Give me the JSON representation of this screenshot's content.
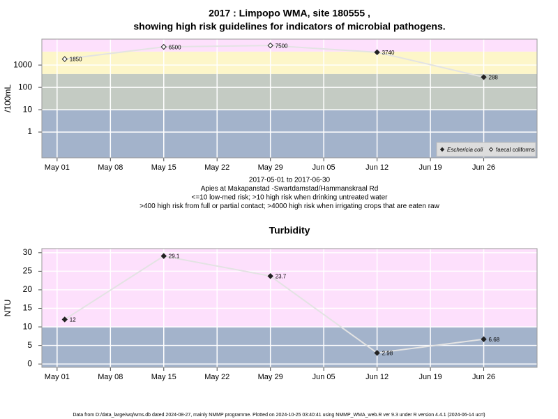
{
  "chart_data": [
    {
      "type": "line",
      "title": [
        "2017 : Limpopo WMA, site 180555 ,",
        "showing high risk guidelines for indicators of microbial pathogens."
      ],
      "notes": [
        "2017-05-01 to 2017-06-30",
        "Apies at Makapanstad -Swartdamstad/Hammanskraal Rd",
        "<=10 low-med risk; >10 high risk when drinking untreated water",
        ">400 high risk from full or partial contact; >4000 high risk when irrigating crops that are eaten raw"
      ],
      "ylabel": "/100mL",
      "log_scale": true,
      "grid": true,
      "legend": "bottom-right",
      "x": [
        "2017-05-02",
        "2017-05-15",
        "2017-05-29",
        "2017-06-12",
        "2017-06-26"
      ],
      "xlim": [
        "2017-04-29",
        "2017-07-03"
      ],
      "xticks": [
        {
          "value": "2017-05-01",
          "label": "May 01"
        },
        {
          "value": "2017-05-08",
          "label": "May 08"
        },
        {
          "value": "2017-05-15",
          "label": "May 15"
        },
        {
          "value": "2017-05-22",
          "label": "May 22"
        },
        {
          "value": "2017-05-29",
          "label": "May 29"
        },
        {
          "value": "2017-06-05",
          "label": "Jun 05"
        },
        {
          "value": "2017-06-12",
          "label": "Jun 12"
        },
        {
          "value": "2017-06-19",
          "label": "Jun 19"
        },
        {
          "value": "2017-06-26",
          "label": "Jun 26"
        }
      ],
      "ylim": [
        0.07,
        14500
      ],
      "yticks": [
        1,
        10,
        100,
        1000
      ],
      "bands": [
        {
          "to": 10,
          "color": "#a3b3cb"
        },
        {
          "to": 400,
          "color": "#c4cbc3"
        },
        {
          "to": 4000,
          "color": "#fdf6c9"
        },
        {
          "to": 14500,
          "color": "#fde0fc"
        }
      ],
      "line_color": "#e3e3e3",
      "series": [
        {
          "name": "Eschericia coli",
          "marker": "filled",
          "color": "#222222",
          "values": [
            null,
            null,
            null,
            3740,
            288
          ]
        },
        {
          "name": "faecal coliforms",
          "marker": "open",
          "color": "#222222",
          "values": [
            1850,
            6500,
            7500,
            null,
            null
          ]
        }
      ]
    },
    {
      "type": "line",
      "title": "Turbidity",
      "ylabel": "NTU",
      "log_scale": false,
      "grid": true,
      "x": [
        "2017-05-02",
        "2017-05-15",
        "2017-05-29",
        "2017-06-12",
        "2017-06-26"
      ],
      "xlim": [
        "2017-04-29",
        "2017-07-03"
      ],
      "xticks": [
        {
          "value": "2017-05-01",
          "label": "May 01"
        },
        {
          "value": "2017-05-08",
          "label": "May 08"
        },
        {
          "value": "2017-05-15",
          "label": "May 15"
        },
        {
          "value": "2017-05-22",
          "label": "May 22"
        },
        {
          "value": "2017-05-29",
          "label": "May 29"
        },
        {
          "value": "2017-06-05",
          "label": "Jun 05"
        },
        {
          "value": "2017-06-12",
          "label": "Jun 12"
        },
        {
          "value": "2017-06-19",
          "label": "Jun 19"
        },
        {
          "value": "2017-06-26",
          "label": "Jun 26"
        }
      ],
      "ylim": [
        -0.9,
        31.1
      ],
      "yticks": [
        0,
        5,
        10,
        15,
        20,
        25,
        30
      ],
      "bands": [
        {
          "to": 10,
          "color": "#a3b3cb"
        },
        {
          "to": 31.1,
          "color": "#fde0fc"
        }
      ],
      "line_color": "#e3e3e3",
      "series": [
        {
          "marker": "filled",
          "color": "#222222",
          "values": [
            12,
            29.1,
            23.7,
            2.98,
            6.68
          ]
        }
      ]
    }
  ],
  "footer": "Data from D:/data_large/wq/wms.db dated 2024-08-27, mainly NMMP programme. Plotted on 2024-10-25 03:40:41 using NMMP_WMA_web.R ver 9.3 under R version 4.4.1 (2024-06-14 ucrt)"
}
